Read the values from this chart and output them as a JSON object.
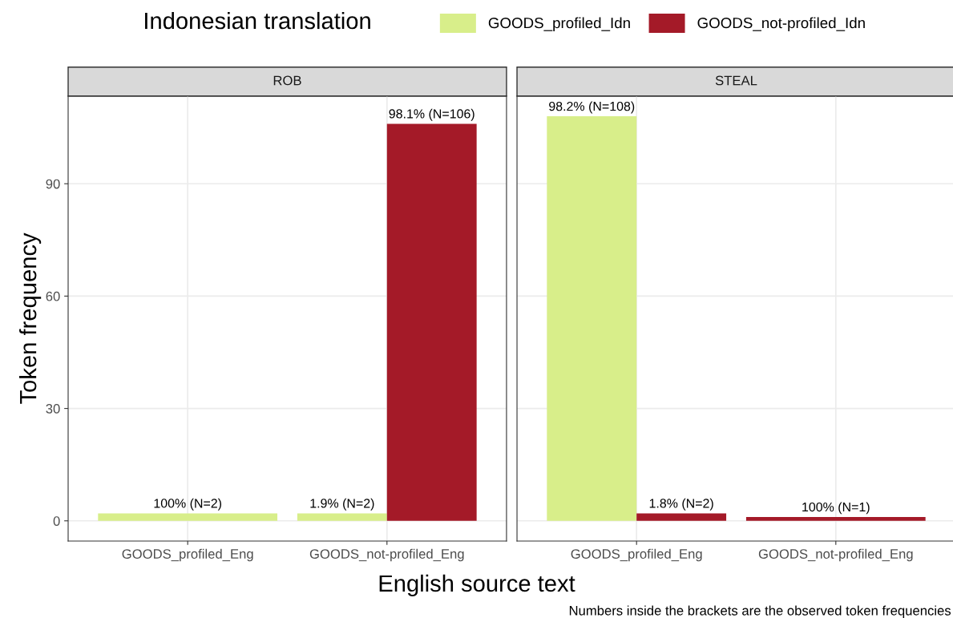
{
  "chart_data": [
    {
      "type": "bar",
      "title": "ROB",
      "categories": [
        "GOODS_profiled_Eng",
        "GOODS_not-profiled_Eng"
      ],
      "ylabel": "Token frequency",
      "xlabel": "English source text",
      "legend": "top",
      "legend_title": "Indonesian translation",
      "ylim": [
        -5.4,
        113.4
      ],
      "yticks": [
        0,
        30,
        60,
        90
      ],
      "grid": true,
      "series": [
        {
          "name": "GOODS_profiled_Idn",
          "color": "#d8ee8a",
          "values": [
            2,
            2
          ],
          "value_labels": [
            "100% (N=2)",
            "1.9% (N=2)"
          ]
        },
        {
          "name": "GOODS_not-profiled_Idn",
          "color": "#a41a28",
          "values": [
            null,
            106
          ],
          "value_labels": [
            null,
            "98.1% (N=106)"
          ]
        }
      ]
    },
    {
      "type": "bar",
      "title": "STEAL",
      "categories": [
        "GOODS_profiled_Eng",
        "GOODS_not-profiled_Eng"
      ],
      "ylim": [
        -5.4,
        113.4
      ],
      "yticks": [
        0,
        30,
        60,
        90
      ],
      "grid": true,
      "tick_labels": "x",
      "annotations": [
        "Numbers inside the brackets are the observed token frequencies"
      ],
      "series": [
        {
          "name": "GOODS_profiled_Idn",
          "color": "#d8ee8a",
          "values": [
            108,
            null
          ],
          "value_labels": [
            "98.2% (N=108)",
            null
          ]
        },
        {
          "name": "GOODS_not-profiled_Idn",
          "color": "#a41a28",
          "values": [
            2,
            1
          ],
          "value_labels": [
            "1.8% (N=2)",
            "100% (N=1)"
          ]
        }
      ]
    }
  ]
}
